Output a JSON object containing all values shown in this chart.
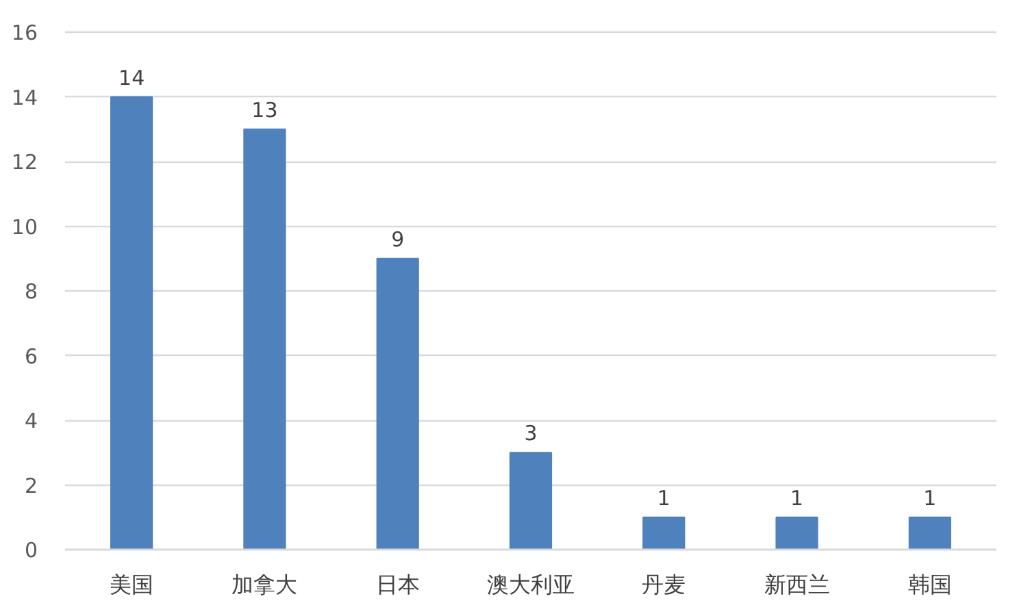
{
  "chart_data": {
    "type": "bar",
    "categories": [
      "美国",
      "加拿大",
      "日本",
      "澳大利亚",
      "丹麦",
      "新西兰",
      "韩国"
    ],
    "values": [
      14,
      13,
      9,
      3,
      1,
      1,
      1
    ],
    "color": "#4f81bd",
    "ylim": [
      0,
      16
    ],
    "yticks": [
      0,
      2,
      4,
      6,
      8,
      10,
      12,
      14,
      16
    ],
    "grid": "y",
    "data_labels": true
  }
}
